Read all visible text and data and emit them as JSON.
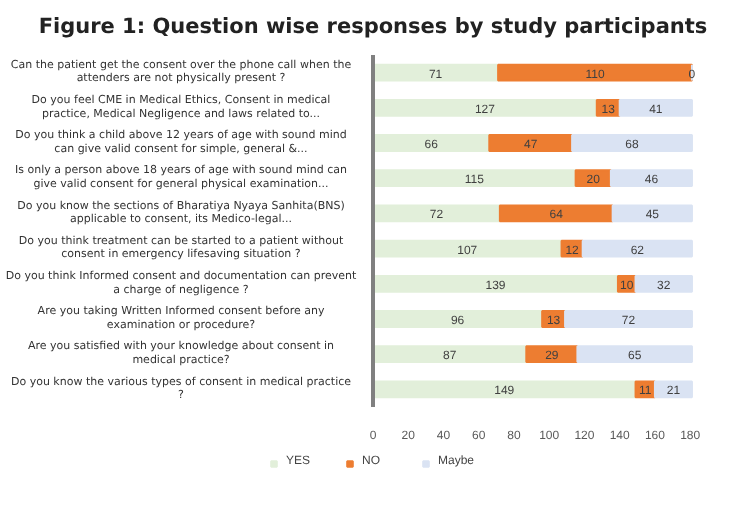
{
  "chart_data": {
    "type": "bar",
    "orientation": "horizontal",
    "stacked": true,
    "title": "Figure 1: Question wise responses by study participants",
    "categories": [
      "Can the patient get the consent over the phone call when the attenders are not physically present ?",
      "Do you feel CME in Medical Ethics, Consent in medical practice, Medical Negligence and laws related to...",
      "Do you think a child above 12 years of age with sound mind can give valid consent for simple, general &...",
      "Is only a person above 18 years of age with sound mind can give valid consent for general physical examination...",
      "Do you know the sections of Bharatiya Nyaya Sanhita(BNS) applicable to consent, its Medico-legal...",
      "Do you think treatment can be started to a patient without consent in emergency lifesaving situation ?",
      "Do you think Informed consent and documentation can prevent a charge of negligence ?",
      "Are you taking Written Informed consent before any examination or procedure?",
      "Are you satisfied with your knowledge about consent in medical practice?",
      "Do you know the various types of consent in medical practice ?"
    ],
    "series": [
      {
        "name": "YES",
        "color": "#e2efda",
        "values": [
          71,
          127,
          66,
          115,
          72,
          107,
          139,
          96,
          87,
          149
        ]
      },
      {
        "name": "NO",
        "color": "#ed7d31",
        "values": [
          110,
          13,
          47,
          20,
          64,
          12,
          10,
          13,
          29,
          11
        ]
      },
      {
        "name": "Maybe",
        "color": "#dae3f3",
        "values": [
          0,
          41,
          68,
          46,
          45,
          62,
          32,
          72,
          65,
          21
        ]
      }
    ],
    "xlim": [
      0,
      185
    ],
    "xticks": [
      0,
      20,
      40,
      60,
      80,
      100,
      120,
      140,
      160,
      180
    ],
    "data_labels": true,
    "grid": false,
    "legend": "bottom"
  }
}
